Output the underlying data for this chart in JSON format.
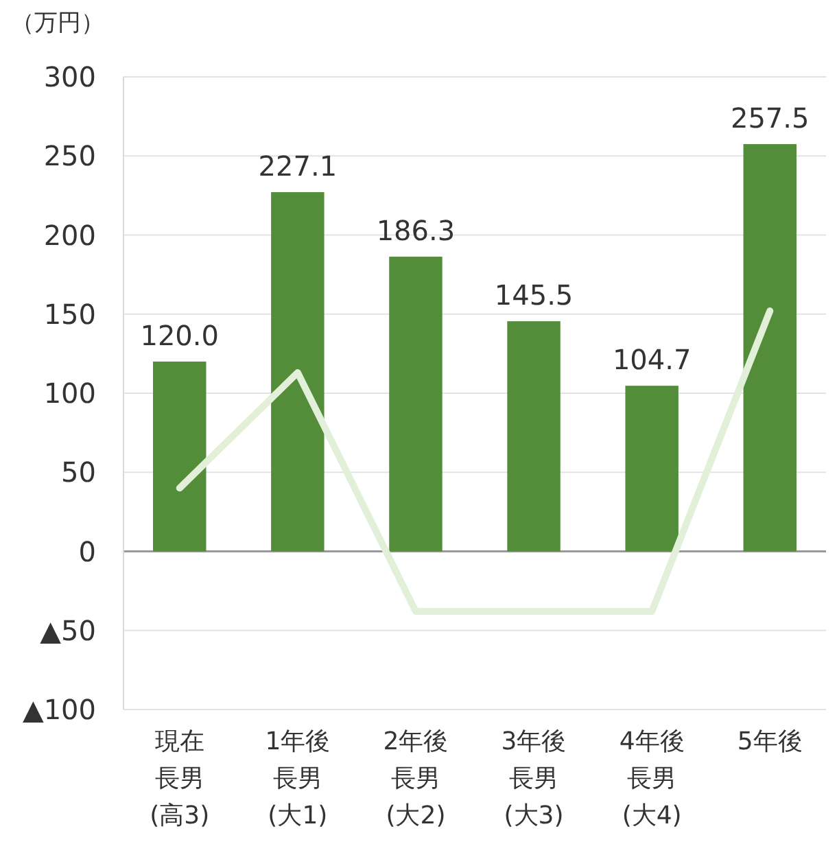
{
  "chart_data": {
    "type": "bar",
    "ylabel": "（万円）",
    "categories": [
      "現在長男(高3)",
      "1年後長男(大1)",
      "2年後長男(大2)",
      "3年後長男(大3)",
      "4年後長男(大4)",
      "5年後"
    ],
    "series": [
      {
        "color": "#548d3a",
        "values": [
          120.0,
          227.1,
          186.3,
          145.5,
          104.7,
          257.5
        ],
        "value_labels": [
          "120.0",
          "227.1",
          "186.3",
          "145.5",
          "104.7",
          "257.5"
        ]
      },
      {
        "type": "line",
        "color": "#e2f0d9",
        "values": [
          40,
          113,
          -38,
          -38,
          -38,
          152
        ]
      }
    ],
    "ylim": [
      -100,
      300
    ],
    "yticks": [
      {
        "value": -100,
        "label": "▲100"
      },
      {
        "value": -50,
        "label": "▲50"
      },
      0,
      50,
      100,
      150,
      200,
      250,
      300
    ],
    "grid": "y",
    "marker": "none",
    "line_style": "solid"
  }
}
